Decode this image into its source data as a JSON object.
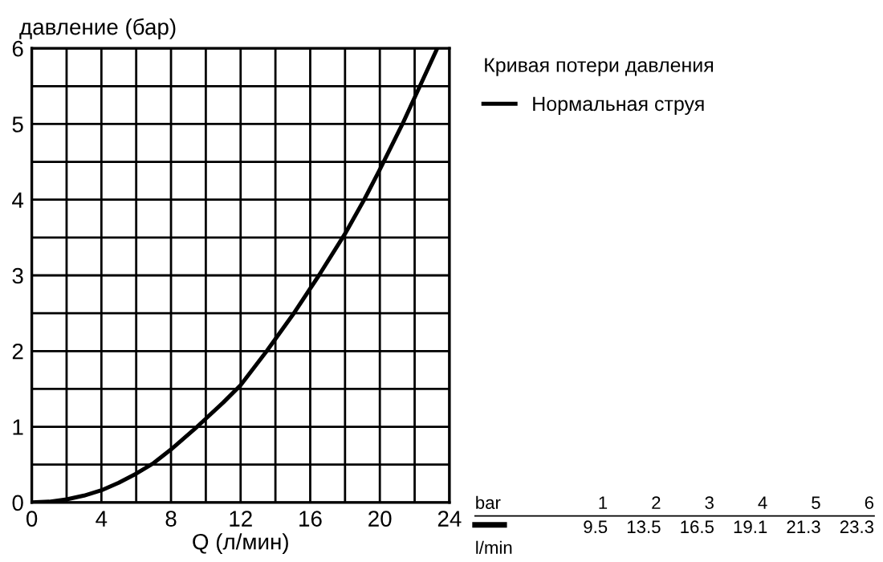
{
  "chart_data": {
    "type": "line",
    "xlabel": "Q (л/мин)",
    "ylabel": "давление (бар)",
    "legend_title": "Кривая потери давления",
    "legend": "right",
    "grid": true,
    "marker": "none",
    "line_style": "solid",
    "xlim": [
      0,
      24
    ],
    "ylim": [
      0,
      6
    ],
    "xticks": [
      0,
      {
        "value": 2,
        "label": null
      },
      4,
      {
        "value": 6,
        "label": null
      },
      8,
      {
        "value": 10,
        "label": null
      },
      12,
      {
        "value": 14,
        "label": null
      },
      16,
      {
        "value": 18,
        "label": null
      },
      20,
      {
        "value": 22,
        "label": null
      },
      24
    ],
    "yticks": [
      0,
      {
        "value": 0.5,
        "label": null
      },
      1,
      {
        "value": 1.5,
        "label": null
      },
      2,
      {
        "value": 2.5,
        "label": null
      },
      3,
      {
        "value": 3.5,
        "label": null
      },
      4,
      {
        "value": 4.5,
        "label": null
      },
      5,
      {
        "value": 5.5,
        "label": null
      },
      6
    ],
    "series": [
      {
        "name": "Нормальная струя",
        "color": "#000000",
        "x": [
          0,
          1,
          2,
          3,
          4,
          5,
          6,
          7,
          8,
          9.5,
          11,
          12,
          13.5,
          15,
          16.5,
          18,
          19.1,
          20,
          21.3,
          22,
          23.3
        ],
        "values": [
          0,
          0.01,
          0.04,
          0.09,
          0.16,
          0.26,
          0.38,
          0.52,
          0.7,
          1,
          1.32,
          1.55,
          2,
          2.48,
          3,
          3.55,
          4,
          4.4,
          5,
          5.35,
          6
        ]
      }
    ],
    "annotations": [
      "bar",
      "1",
      "2",
      "3",
      "4",
      "5",
      "6",
      "l/min",
      "9.5",
      "13.5",
      "16.5",
      "19.1",
      "21.3",
      "23.3"
    ]
  }
}
